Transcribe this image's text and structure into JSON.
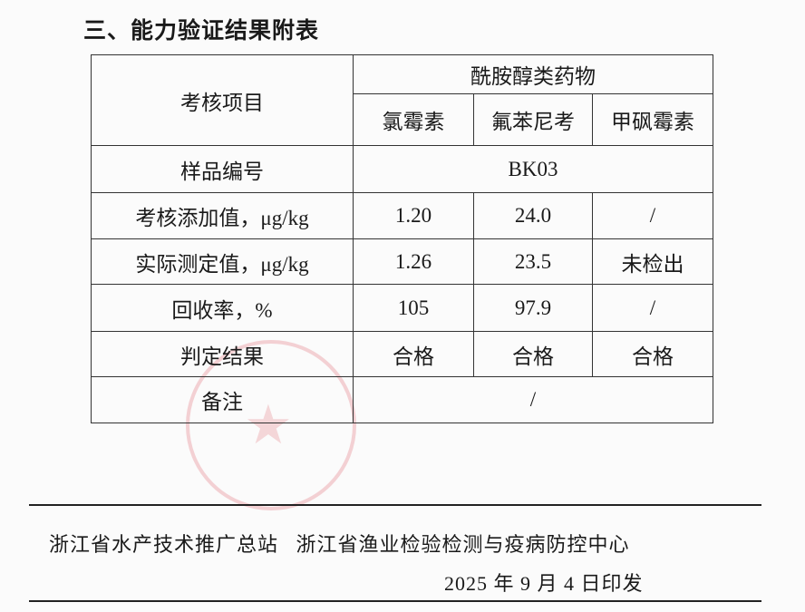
{
  "heading": "三、能力验证结果附表",
  "table": {
    "item_header": "考核项目",
    "group_header": "酰胺醇类药物",
    "drugs": [
      "氯霉素",
      "氟苯尼考",
      "甲砜霉素"
    ],
    "sample_label": "样品编号",
    "sample_id": "BK03",
    "rows": [
      {
        "label": "考核添加值，μg/kg",
        "values": [
          "1.20",
          "24.0",
          "/"
        ]
      },
      {
        "label": "实际测定值，μg/kg",
        "values": [
          "1.26",
          "23.5",
          "未检出"
        ]
      },
      {
        "label": "回收率，%",
        "values": [
          "105",
          "97.9",
          "/"
        ]
      },
      {
        "label": "判定结果",
        "values": [
          "合格",
          "合格",
          "合格"
        ]
      }
    ],
    "remark_label": "备注",
    "remark_value": "/"
  },
  "footer": {
    "org1": "浙江省水产技术推广总站",
    "org2": "浙江省渔业检验检测与疫病防控中心",
    "date": "2025 年 9 月 4 日印发"
  },
  "colors": {
    "seal": "#dc505a"
  }
}
